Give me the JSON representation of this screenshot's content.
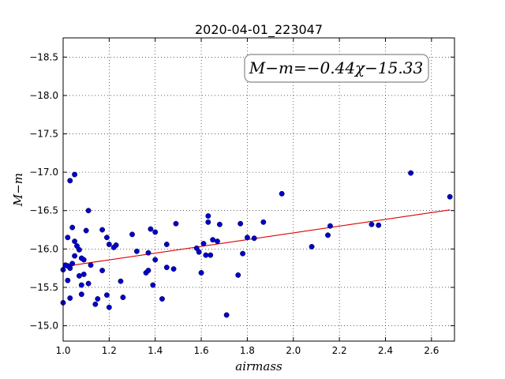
{
  "chart_data": {
    "type": "scatter",
    "title": "2020-04-01_223047",
    "xlabel": "airmass",
    "ylabel": "M−m",
    "xlim": [
      1.0,
      2.7
    ],
    "ylim": [
      -18.75,
      -14.8
    ],
    "y_inverted": true,
    "x_ticks": [
      1.0,
      1.2,
      1.4,
      1.6,
      1.8,
      2.0,
      2.2,
      2.4,
      2.6
    ],
    "x_tick_labels": [
      "1.0",
      "1.2",
      "1.4",
      "1.6",
      "1.8",
      "2.0",
      "2.2",
      "2.4",
      "2.6"
    ],
    "y_ticks": [
      -15.0,
      -15.5,
      -16.0,
      -16.5,
      -17.0,
      -17.5,
      -18.0,
      -18.5
    ],
    "y_tick_labels": [
      "−15.0",
      "−15.5",
      "−16.0",
      "−16.5",
      "−17.0",
      "−17.5",
      "−18.0",
      "−18.5"
    ],
    "grid": true,
    "point_color": "#0000cc",
    "fit_color": "#dd0000",
    "fit": {
      "slope": -0.44,
      "intercept": -15.33,
      "label": "M−m=−0.44χ−15.33"
    },
    "points": [
      [
        1.0,
        -15.3
      ],
      [
        1.0,
        -15.73
      ],
      [
        1.01,
        -15.79
      ],
      [
        1.02,
        -16.15
      ],
      [
        1.02,
        -15.59
      ],
      [
        1.02,
        -15.78
      ],
      [
        1.03,
        -15.36
      ],
      [
        1.03,
        -15.75
      ],
      [
        1.03,
        -16.89
      ],
      [
        1.04,
        -15.81
      ],
      [
        1.04,
        -16.28
      ],
      [
        1.05,
        -16.97
      ],
      [
        1.05,
        -16.1
      ],
      [
        1.05,
        -15.91
      ],
      [
        1.06,
        -16.04
      ],
      [
        1.07,
        -15.65
      ],
      [
        1.07,
        -15.99
      ],
      [
        1.08,
        -15.88
      ],
      [
        1.08,
        -15.41
      ],
      [
        1.08,
        -15.53
      ],
      [
        1.09,
        -15.67
      ],
      [
        1.09,
        -15.86
      ],
      [
        1.1,
        -16.24
      ],
      [
        1.11,
        -15.55
      ],
      [
        1.11,
        -16.5
      ],
      [
        1.12,
        -15.79
      ],
      [
        1.14,
        -15.28
      ],
      [
        1.15,
        -15.35
      ],
      [
        1.17,
        -15.72
      ],
      [
        1.17,
        -16.25
      ],
      [
        1.19,
        -16.15
      ],
      [
        1.19,
        -15.4
      ],
      [
        1.2,
        -15.24
      ],
      [
        1.2,
        -16.06
      ],
      [
        1.22,
        -16.02
      ],
      [
        1.23,
        -16.05
      ],
      [
        1.25,
        -15.58
      ],
      [
        1.26,
        -15.37
      ],
      [
        1.3,
        -16.19
      ],
      [
        1.32,
        -15.97
      ],
      [
        1.36,
        -15.69
      ],
      [
        1.37,
        -15.72
      ],
      [
        1.37,
        -15.95
      ],
      [
        1.38,
        -16.26
      ],
      [
        1.39,
        -15.53
      ],
      [
        1.4,
        -16.22
      ],
      [
        1.4,
        -15.86
      ],
      [
        1.43,
        -15.35
      ],
      [
        1.45,
        -15.76
      ],
      [
        1.45,
        -16.06
      ],
      [
        1.48,
        -15.74
      ],
      [
        1.49,
        -16.33
      ],
      [
        1.58,
        -16.01
      ],
      [
        1.59,
        -15.96
      ],
      [
        1.6,
        -15.69
      ],
      [
        1.61,
        -16.07
      ],
      [
        1.62,
        -15.92
      ],
      [
        1.63,
        -16.35
      ],
      [
        1.63,
        -16.43
      ],
      [
        1.64,
        -15.92
      ],
      [
        1.65,
        -16.12
      ],
      [
        1.67,
        -16.1
      ],
      [
        1.68,
        -16.32
      ],
      [
        1.71,
        -15.14
      ],
      [
        1.76,
        -15.66
      ],
      [
        1.77,
        -16.33
      ],
      [
        1.78,
        -15.94
      ],
      [
        1.8,
        -16.15
      ],
      [
        1.83,
        -16.14
      ],
      [
        1.87,
        -16.35
      ],
      [
        1.95,
        -16.72
      ],
      [
        2.08,
        -16.03
      ],
      [
        2.15,
        -16.18
      ],
      [
        2.16,
        -16.3
      ],
      [
        2.34,
        -16.32
      ],
      [
        2.37,
        -16.31
      ],
      [
        2.51,
        -16.99
      ],
      [
        2.68,
        -16.68
      ]
    ]
  }
}
